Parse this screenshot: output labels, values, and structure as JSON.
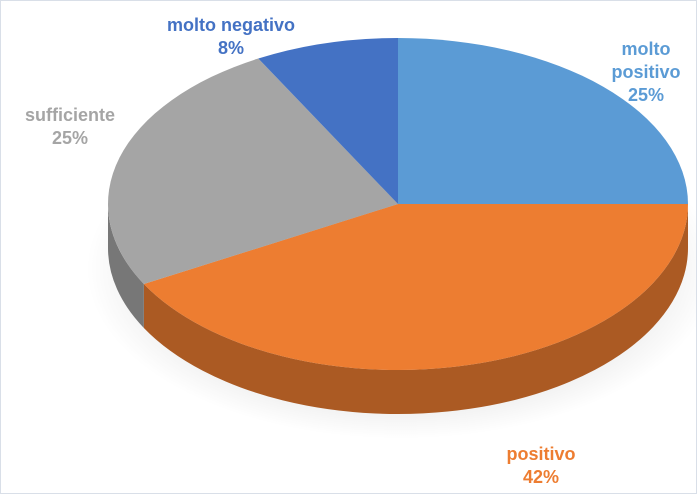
{
  "chart_data": {
    "type": "pie",
    "title": "",
    "slices": [
      {
        "name": "molto positivo",
        "label_lines": [
          "molto",
          "positivo"
        ],
        "value": 25,
        "label": "25%",
        "color": "#5b9bd5",
        "label_color": "#5b9bd5"
      },
      {
        "name": "positivo",
        "label_lines": [
          "positivo"
        ],
        "value": 42,
        "label": "42%",
        "color": "#ed7d31",
        "label_color": "#ed7d31"
      },
      {
        "name": "sufficiente",
        "label_lines": [
          "sufficiente"
        ],
        "value": 25,
        "label": "25%",
        "color": "#a5a5a5",
        "label_color": "#a5a5a5"
      },
      {
        "name": "molto negativo",
        "label_lines": [
          "molto negativo"
        ],
        "value": 8,
        "label": "8%",
        "color": "#4472c4",
        "label_color": "#4472c4"
      }
    ],
    "legend": "none",
    "style": "3d-pie"
  }
}
